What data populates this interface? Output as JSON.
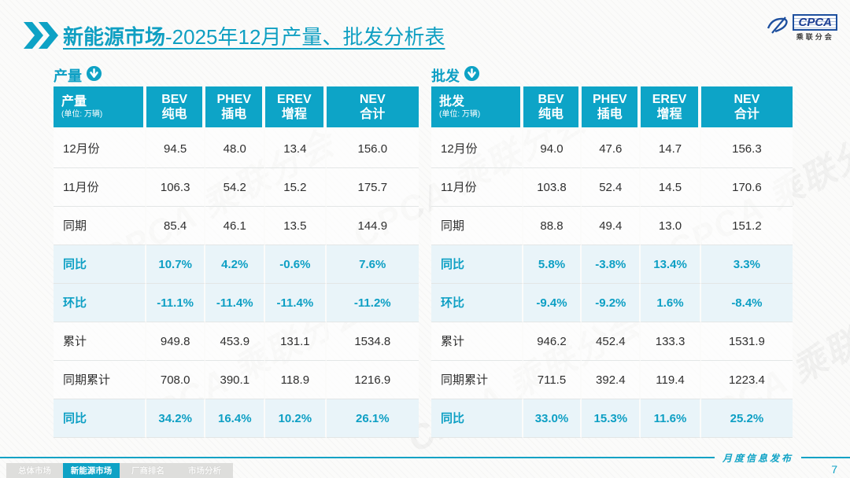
{
  "header": {
    "title_bold": "新能源市场",
    "title_rest": "-2025年12月产量、批发分析表",
    "logo_text": "CPCA",
    "logo_sub": "乘联分会",
    "watermark": "CPCA 乘联分会"
  },
  "accent_color": "#0ea2c5",
  "tables": [
    {
      "section": "产量",
      "first_header": "产量",
      "unit": "(单位: 万辆)",
      "columns": [
        {
          "en": "BEV",
          "cn": "纯电"
        },
        {
          "en": "PHEV",
          "cn": "插电"
        },
        {
          "en": "EREV",
          "cn": "增程"
        },
        {
          "en": "NEV",
          "cn": "合计"
        }
      ],
      "rows": [
        {
          "label": "12月份",
          "type": "data",
          "values": [
            "94.5",
            "48.0",
            "13.4",
            "156.0"
          ]
        },
        {
          "label": "11月份",
          "type": "data",
          "values": [
            "106.3",
            "54.2",
            "15.2",
            "175.7"
          ]
        },
        {
          "label": "同期",
          "type": "data",
          "values": [
            "85.4",
            "46.1",
            "13.5",
            "144.9"
          ]
        },
        {
          "label": "同比",
          "type": "pct",
          "values": [
            "10.7%",
            "4.2%",
            "-0.6%",
            "7.6%"
          ]
        },
        {
          "label": "环比",
          "type": "pct",
          "values": [
            "-11.1%",
            "-11.4%",
            "-11.4%",
            "-11.2%"
          ]
        },
        {
          "label": "累计",
          "type": "data",
          "values": [
            "949.8",
            "453.9",
            "131.1",
            "1534.8"
          ]
        },
        {
          "label": "同期累计",
          "type": "data",
          "values": [
            "708.0",
            "390.1",
            "118.9",
            "1216.9"
          ]
        },
        {
          "label": "同比",
          "type": "pct",
          "values": [
            "34.2%",
            "16.4%",
            "10.2%",
            "26.1%"
          ]
        }
      ]
    },
    {
      "section": "批发",
      "first_header": "批发",
      "unit": "(单位: 万辆)",
      "columns": [
        {
          "en": "BEV",
          "cn": "纯电"
        },
        {
          "en": "PHEV",
          "cn": "插电"
        },
        {
          "en": "EREV",
          "cn": "增程"
        },
        {
          "en": "NEV",
          "cn": "合计"
        }
      ],
      "rows": [
        {
          "label": "12月份",
          "type": "data",
          "values": [
            "94.0",
            "47.6",
            "14.7",
            "156.3"
          ]
        },
        {
          "label": "11月份",
          "type": "data",
          "values": [
            "103.8",
            "52.4",
            "14.5",
            "170.6"
          ]
        },
        {
          "label": "同期",
          "type": "data",
          "values": [
            "88.8",
            "49.4",
            "13.0",
            "151.2"
          ]
        },
        {
          "label": "同比",
          "type": "pct",
          "values": [
            "5.8%",
            "-3.8%",
            "13.4%",
            "3.3%"
          ]
        },
        {
          "label": "环比",
          "type": "pct",
          "values": [
            "-9.4%",
            "-9.2%",
            "1.6%",
            "-8.4%"
          ]
        },
        {
          "label": "累计",
          "type": "data",
          "values": [
            "946.2",
            "452.4",
            "133.3",
            "1531.9"
          ]
        },
        {
          "label": "同期累计",
          "type": "data",
          "values": [
            "711.5",
            "392.4",
            "119.4",
            "1223.4"
          ]
        },
        {
          "label": "同比",
          "type": "pct",
          "values": [
            "33.0%",
            "15.3%",
            "11.6%",
            "25.2%"
          ]
        }
      ]
    }
  ],
  "footer": {
    "tabs": [
      {
        "label": "总体市场",
        "active": false
      },
      {
        "label": "新能源市场",
        "active": true
      },
      {
        "label": "厂商排名",
        "active": false
      },
      {
        "label": "市场分析",
        "active": false
      }
    ],
    "publication": "月度信息发布",
    "page": "7"
  }
}
